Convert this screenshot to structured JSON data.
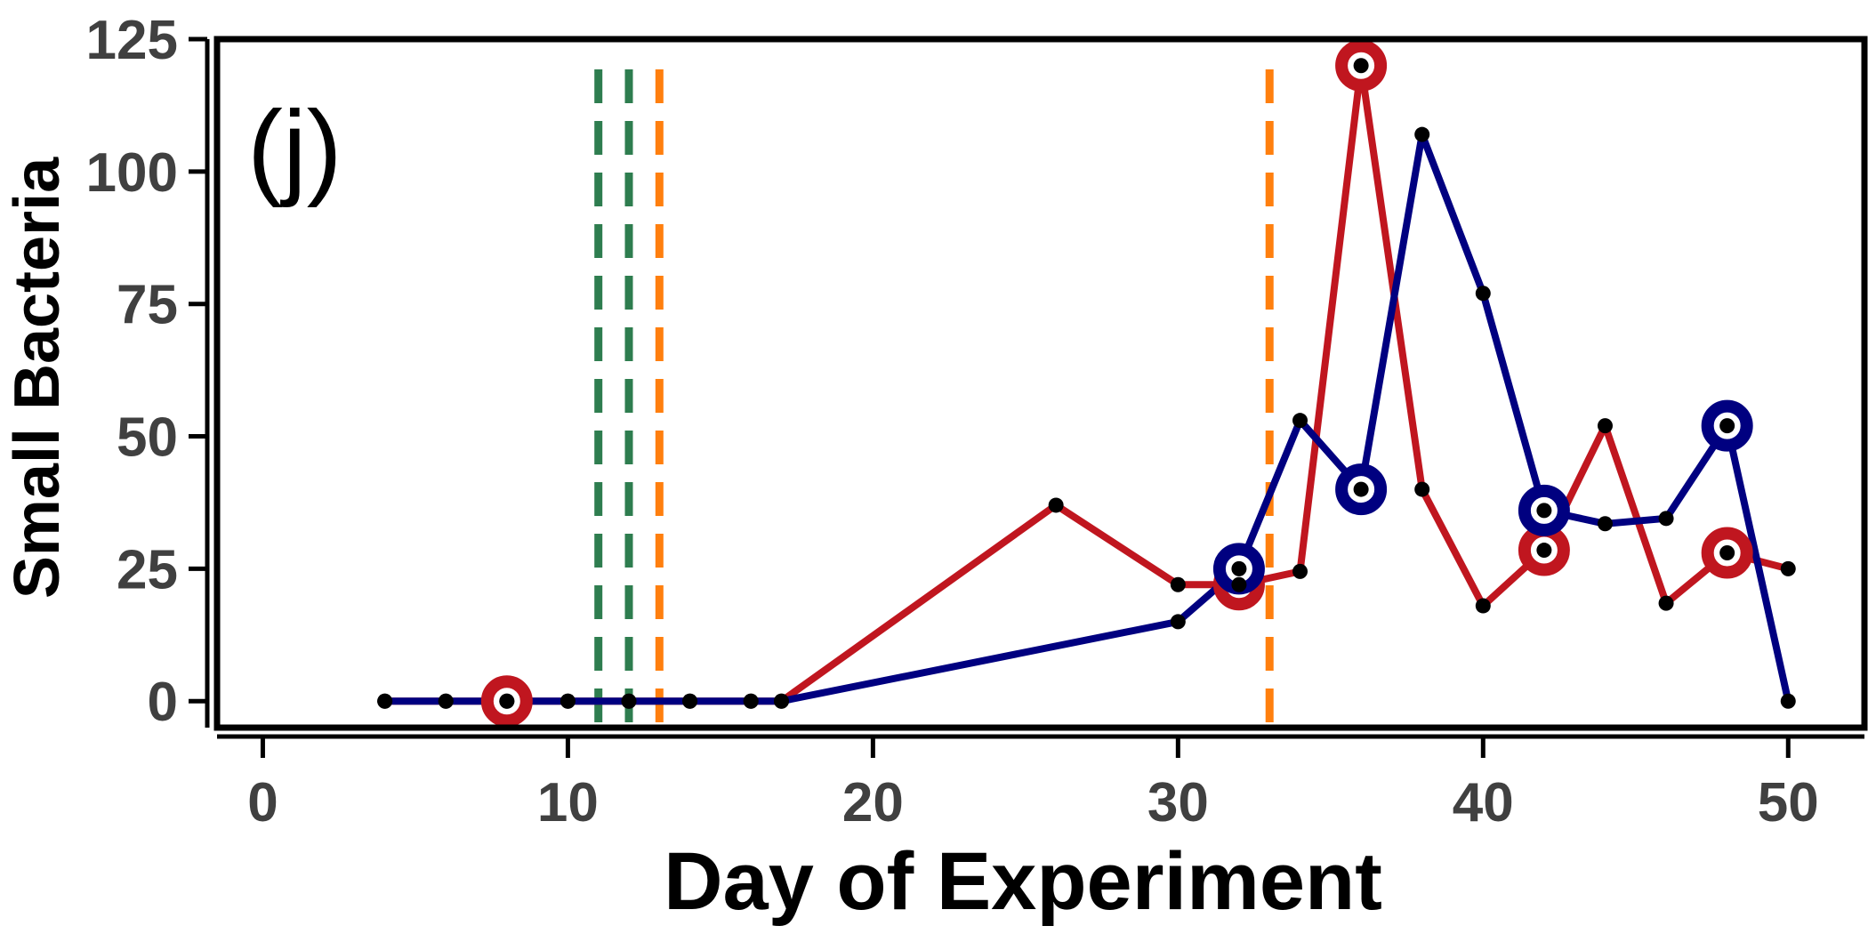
{
  "chart_data": {
    "type": "line",
    "panel_label": "(j)",
    "xlabel": "Day of Experiment",
    "ylabel": "Small Bacteria",
    "xlim": [
      -1.5,
      52.5
    ],
    "ylim": [
      -5,
      125
    ],
    "xticks": [
      0,
      10,
      20,
      30,
      40,
      50
    ],
    "yticks": [
      0,
      25,
      50,
      75,
      100,
      125
    ],
    "grid": false,
    "vlines": [
      {
        "x": 11,
        "color": "#2e7d4f"
      },
      {
        "x": 12,
        "color": "#2e7d4f"
      },
      {
        "x": 13,
        "color": "#ff7f0e"
      },
      {
        "x": 33,
        "color": "#ff7f0e"
      }
    ],
    "series": [
      {
        "color": "#c0161f",
        "points": [
          [
            4,
            0
          ],
          [
            6,
            0
          ],
          [
            8,
            0
          ],
          [
            10,
            0
          ],
          [
            12,
            0
          ],
          [
            14,
            0
          ],
          [
            16,
            0
          ],
          [
            17,
            0
          ],
          [
            26,
            37
          ],
          [
            30,
            22
          ],
          [
            32,
            22
          ],
          [
            34,
            24.5
          ],
          [
            36,
            120
          ],
          [
            38,
            40
          ],
          [
            40,
            18
          ],
          [
            42,
            28.5
          ],
          [
            44,
            52
          ],
          [
            46,
            18.5
          ],
          [
            48,
            28
          ],
          [
            50,
            25
          ]
        ],
        "highlighted_x": [
          8,
          32,
          36,
          42,
          48
        ]
      },
      {
        "color": "#000080",
        "points": [
          [
            4,
            0
          ],
          [
            6,
            0
          ],
          [
            8,
            0
          ],
          [
            10,
            0
          ],
          [
            12,
            0
          ],
          [
            14,
            0
          ],
          [
            16,
            0
          ],
          [
            17,
            0
          ],
          [
            30,
            15
          ],
          [
            32,
            25
          ],
          [
            34,
            53
          ],
          [
            36,
            40
          ],
          [
            38,
            107
          ],
          [
            40,
            77
          ],
          [
            42,
            36
          ],
          [
            44,
            33.5
          ],
          [
            46,
            34.5
          ],
          [
            48,
            52
          ],
          [
            50,
            0
          ]
        ],
        "highlighted_x": [
          32,
          36,
          42,
          48
        ]
      }
    ],
    "marker_color": "#000000"
  }
}
